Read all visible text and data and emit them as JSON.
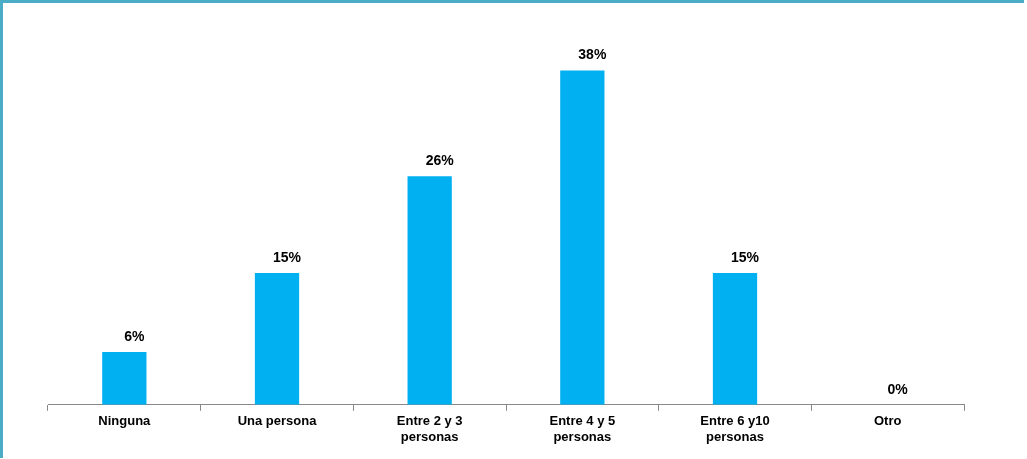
{
  "chart_data": {
    "type": "bar",
    "categories": [
      "Ninguna",
      "Una persona",
      "Entre 2 y 3 personas",
      "Entre 4 y 5 personas",
      "Entre 6 y10 personas",
      "Otro"
    ],
    "values": [
      6,
      15,
      26,
      38,
      15,
      0
    ],
    "color": "#00b0f0",
    "value_labels": [
      "6%",
      "15%",
      "26%",
      "38%",
      "15%",
      "0%"
    ],
    "grid": false,
    "legend": false
  }
}
